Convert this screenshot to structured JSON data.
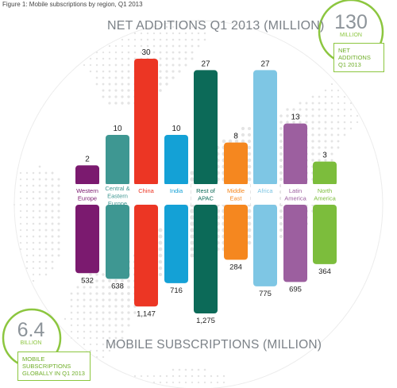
{
  "caption": "Figure 1: Mobile subscriptions by region, Q1 2013",
  "top_title": "NET ADDITIONS Q1 2013 (MILLION)",
  "bottom_title": "MOBILE SUBSCRIPTIONS (MILLION)",
  "badge_top": {
    "value": "130",
    "unit": "MILLION",
    "label_lines": [
      "NET ADDITIONS",
      "Q1 2013"
    ]
  },
  "badge_bottom": {
    "value": "6.4",
    "unit": "BILLION",
    "label_lines": [
      "MOBILE SUBSCRIPTIONS",
      "GLOBALLY IN Q1 2013"
    ]
  },
  "colors": {
    "accent": "#8cc63f",
    "title": "#7c8288",
    "globe_dots": "#e4e4e4"
  },
  "chart_data": {
    "type": "bar",
    "categories": [
      {
        "lines": [
          "Western",
          "Europe"
        ],
        "color": "#7b1a6f"
      },
      {
        "lines": [
          "Central &",
          "Eastern",
          "Europe"
        ],
        "color": "#3e9792"
      },
      {
        "lines": [
          "China"
        ],
        "color": "#ec3624"
      },
      {
        "lines": [
          "India"
        ],
        "color": "#14a1d6"
      },
      {
        "lines": [
          "Rest of",
          "APAC"
        ],
        "color": "#0c6a58"
      },
      {
        "lines": [
          "Middle",
          "East"
        ],
        "color": "#f5871f"
      },
      {
        "lines": [
          "Africa"
        ],
        "color": "#7ec6e4"
      },
      {
        "lines": [
          "Latin",
          "America"
        ],
        "color": "#9c5f9f"
      },
      {
        "lines": [
          "North",
          "America"
        ],
        "color": "#7cbd3c"
      }
    ],
    "series": [
      {
        "name": "NET ADDITIONS Q1 2013 (MILLION)",
        "values": [
          2,
          10,
          30,
          10,
          27,
          8,
          27,
          13,
          3
        ],
        "labels": [
          "2",
          "10",
          "30",
          "10",
          "27",
          "8",
          "27",
          "13",
          "3"
        ]
      },
      {
        "name": "MOBILE SUBSCRIPTIONS (MILLION)",
        "values": [
          532,
          638,
          1147,
          716,
          1275,
          284,
          775,
          695,
          364
        ],
        "labels": [
          "532",
          "638",
          "1,147",
          "716",
          "1,275",
          "284",
          "775",
          "695",
          "364"
        ]
      }
    ],
    "ylim_top": [
      0,
      30
    ],
    "ylim_bottom": [
      0,
      1275
    ]
  }
}
